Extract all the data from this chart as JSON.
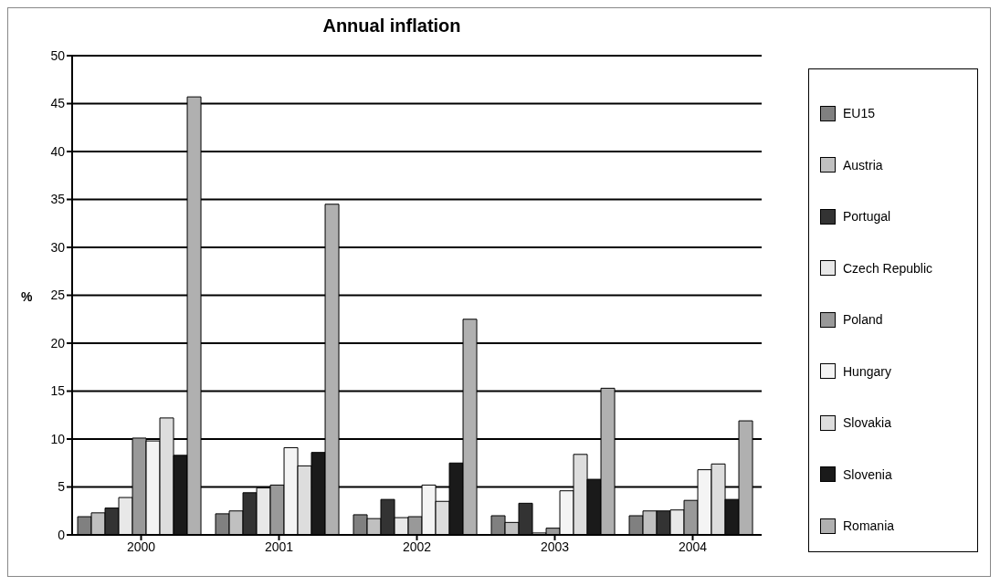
{
  "chart_data": {
    "type": "bar",
    "title": "Annual inflation",
    "ylabel": "%",
    "categories": [
      "2000",
      "2001",
      "2002",
      "2003",
      "2004"
    ],
    "series": [
      {
        "name": "EU15",
        "color": "#808080",
        "values": [
          1.9,
          2.2,
          2.1,
          2.0,
          2.0
        ]
      },
      {
        "name": "Austria",
        "color": "#c0c0c0",
        "values": [
          2.3,
          2.5,
          1.7,
          1.3,
          2.5
        ]
      },
      {
        "name": "Portugal",
        "color": "#333333",
        "values": [
          2.8,
          4.4,
          3.7,
          3.3,
          2.5
        ]
      },
      {
        "name": "Czech Republic",
        "color": "#e8e8e8",
        "values": [
          3.9,
          4.9,
          1.8,
          0.2,
          2.6
        ]
      },
      {
        "name": "Poland",
        "color": "#999999",
        "values": [
          10.1,
          5.2,
          1.9,
          0.7,
          3.6
        ]
      },
      {
        "name": "Hungary",
        "color": "#f4f4f4",
        "values": [
          9.8,
          9.1,
          5.2,
          4.6,
          6.8
        ]
      },
      {
        "name": "Slovakia",
        "color": "#dddddd",
        "values": [
          12.2,
          7.2,
          3.5,
          8.4,
          7.4
        ]
      },
      {
        "name": "Slovenia",
        "color": "#1a1a1a",
        "values": [
          8.3,
          8.6,
          7.5,
          5.8,
          3.7
        ]
      },
      {
        "name": "Romania",
        "color": "#b0b0b0",
        "values": [
          45.7,
          34.5,
          22.5,
          15.3,
          11.9
        ]
      }
    ],
    "ylim": [
      0,
      50
    ],
    "yticks": [
      0,
      5,
      10,
      15,
      20,
      25,
      30,
      35,
      40,
      45,
      50
    ],
    "grid": "y",
    "legend": "right"
  }
}
